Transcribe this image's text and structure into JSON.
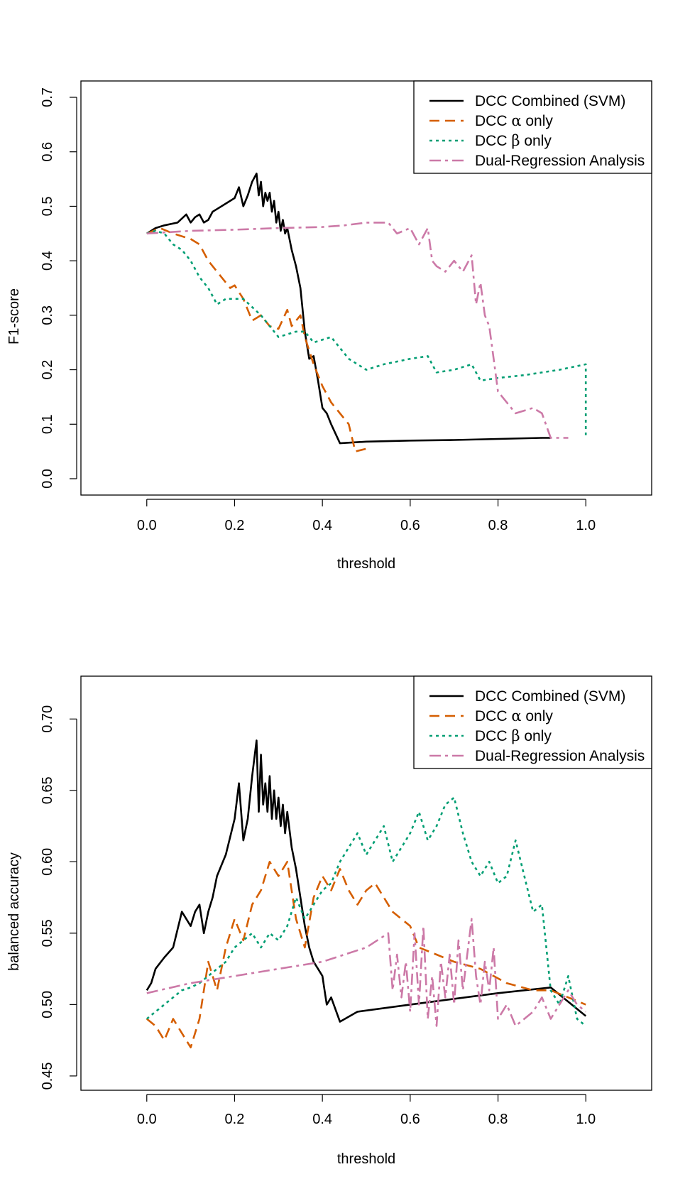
{
  "series_style": [
    {
      "color": "#000000",
      "dash": ""
    },
    {
      "color": "#D55E00",
      "dash": "14,8"
    },
    {
      "color": "#009E73",
      "dash": "4,5"
    },
    {
      "color": "#CC79A7",
      "dash": "16,6,4,6"
    }
  ],
  "chart_data": [
    {
      "type": "line",
      "title": "",
      "xlabel": "threshold",
      "ylabel": "F1-score",
      "xlim": [
        -0.15,
        1.15
      ],
      "ylim": [
        -0.03,
        0.73
      ],
      "xticks": [
        "0.0",
        "0.2",
        "0.4",
        "0.6",
        "0.8",
        "1.0"
      ],
      "yticks": [
        "0.0",
        "0.1",
        "0.2",
        "0.3",
        "0.4",
        "0.5",
        "0.6",
        "0.7"
      ],
      "legend_position": "top-right",
      "series": [
        {
          "name": "DCC Combined (SVM)",
          "legend_prefix": "DCC Combined (SVM)",
          "legend_symbol": "",
          "legend_suffix": "",
          "x": [
            0,
            0.02,
            0.04,
            0.07,
            0.09,
            0.1,
            0.11,
            0.12,
            0.13,
            0.14,
            0.15,
            0.16,
            0.18,
            0.2,
            0.21,
            0.22,
            0.23,
            0.24,
            0.25,
            0.255,
            0.26,
            0.265,
            0.27,
            0.275,
            0.28,
            0.285,
            0.29,
            0.295,
            0.3,
            0.305,
            0.31,
            0.315,
            0.32,
            0.33,
            0.34,
            0.35,
            0.36,
            0.37,
            0.38,
            0.39,
            0.4,
            0.405,
            0.41,
            0.42,
            0.44,
            0.5,
            0.6,
            0.7,
            0.8,
            0.9,
            0.92
          ],
          "values": [
            0.45,
            0.46,
            0.465,
            0.47,
            0.485,
            0.47,
            0.48,
            0.485,
            0.47,
            0.475,
            0.49,
            0.495,
            0.505,
            0.515,
            0.535,
            0.5,
            0.52,
            0.545,
            0.56,
            0.52,
            0.545,
            0.5,
            0.525,
            0.51,
            0.525,
            0.49,
            0.51,
            0.47,
            0.49,
            0.455,
            0.475,
            0.45,
            0.46,
            0.42,
            0.39,
            0.35,
            0.27,
            0.22,
            0.225,
            0.18,
            0.13,
            0.125,
            0.12,
            0.1,
            0.065,
            0.068,
            0.07,
            0.071,
            0.073,
            0.075,
            0.075
          ]
        },
        {
          "name": "DCC α only",
          "legend_prefix": "DCC ",
          "legend_symbol": "α",
          "legend_suffix": " only",
          "x": [
            0,
            0.03,
            0.06,
            0.1,
            0.12,
            0.14,
            0.16,
            0.18,
            0.19,
            0.2,
            0.22,
            0.24,
            0.26,
            0.28,
            0.3,
            0.32,
            0.33,
            0.35,
            0.36,
            0.38,
            0.4,
            0.42,
            0.44,
            0.46,
            0.475,
            0.5
          ],
          "values": [
            0.45,
            0.46,
            0.45,
            0.44,
            0.43,
            0.4,
            0.38,
            0.36,
            0.35,
            0.355,
            0.33,
            0.29,
            0.3,
            0.28,
            0.275,
            0.31,
            0.28,
            0.3,
            0.26,
            0.21,
            0.17,
            0.14,
            0.12,
            0.1,
            0.05,
            0.055
          ]
        },
        {
          "name": "DCC β only",
          "legend_prefix": "DCC ",
          "legend_symbol": "β",
          "legend_suffix": " only",
          "x": [
            0,
            0.02,
            0.04,
            0.05,
            0.06,
            0.08,
            0.1,
            0.12,
            0.14,
            0.16,
            0.18,
            0.22,
            0.26,
            0.3,
            0.34,
            0.36,
            0.38,
            0.42,
            0.44,
            0.46,
            0.5,
            0.54,
            0.6,
            0.64,
            0.66,
            0.7,
            0.74,
            0.76,
            0.8,
            0.86,
            0.9,
            0.94,
            1.0,
            1.0
          ],
          "values": [
            0.45,
            0.455,
            0.45,
            0.44,
            0.43,
            0.42,
            0.4,
            0.37,
            0.35,
            0.32,
            0.33,
            0.33,
            0.3,
            0.26,
            0.27,
            0.27,
            0.25,
            0.26,
            0.24,
            0.22,
            0.2,
            0.21,
            0.22,
            0.225,
            0.195,
            0.2,
            0.21,
            0.18,
            0.185,
            0.19,
            0.195,
            0.2,
            0.21,
            0.08
          ]
        },
        {
          "name": "Dual-Regression Analysis",
          "legend_prefix": "Dual-Regression Analysis",
          "legend_symbol": "",
          "legend_suffix": "",
          "x": [
            0,
            0.1,
            0.2,
            0.3,
            0.4,
            0.45,
            0.5,
            0.55,
            0.57,
            0.6,
            0.62,
            0.64,
            0.65,
            0.66,
            0.68,
            0.7,
            0.72,
            0.74,
            0.75,
            0.76,
            0.77,
            0.78,
            0.79,
            0.8,
            0.82,
            0.84,
            0.86,
            0.88,
            0.9,
            0.92,
            0.96
          ],
          "values": [
            0.45,
            0.455,
            0.457,
            0.46,
            0.462,
            0.465,
            0.47,
            0.47,
            0.45,
            0.46,
            0.43,
            0.46,
            0.4,
            0.39,
            0.38,
            0.4,
            0.38,
            0.41,
            0.32,
            0.36,
            0.3,
            0.28,
            0.22,
            0.16,
            0.14,
            0.12,
            0.125,
            0.13,
            0.12,
            0.075,
            0.075
          ]
        }
      ]
    },
    {
      "type": "line",
      "title": "",
      "xlabel": "threshold",
      "ylabel": "balanced accuracy",
      "xlim": [
        -0.15,
        1.15
      ],
      "ylim": [
        0.44,
        0.73
      ],
      "xticks": [
        "0.0",
        "0.2",
        "0.4",
        "0.6",
        "0.8",
        "1.0"
      ],
      "yticks": [
        "0.45",
        "0.50",
        "0.55",
        "0.60",
        "0.65",
        "0.70"
      ],
      "legend_position": "top-right",
      "series": [
        {
          "name": "DCC Combined (SVM)",
          "legend_prefix": "DCC Combined (SVM)",
          "legend_symbol": "",
          "legend_suffix": "",
          "x": [
            0,
            0.01,
            0.02,
            0.04,
            0.06,
            0.08,
            0.1,
            0.11,
            0.12,
            0.13,
            0.14,
            0.15,
            0.16,
            0.18,
            0.2,
            0.21,
            0.22,
            0.23,
            0.24,
            0.25,
            0.255,
            0.26,
            0.265,
            0.27,
            0.275,
            0.28,
            0.285,
            0.29,
            0.295,
            0.3,
            0.305,
            0.31,
            0.315,
            0.32,
            0.33,
            0.34,
            0.35,
            0.36,
            0.37,
            0.38,
            0.39,
            0.4,
            0.405,
            0.41,
            0.42,
            0.44,
            0.48,
            0.6,
            0.8,
            0.92,
            1.0
          ],
          "values": [
            0.51,
            0.515,
            0.525,
            0.533,
            0.54,
            0.565,
            0.555,
            0.565,
            0.57,
            0.55,
            0.565,
            0.575,
            0.59,
            0.605,
            0.63,
            0.655,
            0.615,
            0.63,
            0.66,
            0.685,
            0.635,
            0.675,
            0.64,
            0.655,
            0.635,
            0.66,
            0.63,
            0.65,
            0.63,
            0.645,
            0.625,
            0.64,
            0.62,
            0.635,
            0.61,
            0.595,
            0.575,
            0.555,
            0.54,
            0.53,
            0.525,
            0.52,
            0.51,
            0.5,
            0.505,
            0.488,
            0.495,
            0.5,
            0.508,
            0.512,
            0.492
          ]
        },
        {
          "name": "DCC α only",
          "legend_prefix": "DCC ",
          "legend_symbol": "α",
          "legend_suffix": " only",
          "x": [
            0,
            0.02,
            0.04,
            0.06,
            0.08,
            0.1,
            0.12,
            0.14,
            0.16,
            0.18,
            0.2,
            0.22,
            0.24,
            0.26,
            0.28,
            0.3,
            0.32,
            0.34,
            0.36,
            0.38,
            0.4,
            0.42,
            0.44,
            0.46,
            0.48,
            0.5,
            0.52,
            0.54,
            0.56,
            0.58,
            0.6,
            0.62,
            0.66,
            0.7,
            0.76,
            0.82,
            0.88,
            0.92,
            0.96,
            1.0
          ],
          "values": [
            0.49,
            0.485,
            0.475,
            0.49,
            0.48,
            0.47,
            0.49,
            0.53,
            0.51,
            0.54,
            0.56,
            0.545,
            0.57,
            0.58,
            0.6,
            0.59,
            0.6,
            0.56,
            0.54,
            0.575,
            0.59,
            0.58,
            0.595,
            0.58,
            0.57,
            0.58,
            0.585,
            0.575,
            0.565,
            0.56,
            0.555,
            0.54,
            0.535,
            0.53,
            0.525,
            0.515,
            0.51,
            0.51,
            0.505,
            0.5
          ]
        },
        {
          "name": "DCC β only",
          "legend_prefix": "DCC ",
          "legend_symbol": "β",
          "legend_suffix": " only",
          "x": [
            0,
            0.02,
            0.04,
            0.06,
            0.08,
            0.1,
            0.12,
            0.14,
            0.16,
            0.18,
            0.2,
            0.22,
            0.24,
            0.26,
            0.28,
            0.3,
            0.32,
            0.34,
            0.36,
            0.38,
            0.4,
            0.42,
            0.44,
            0.46,
            0.48,
            0.5,
            0.52,
            0.54,
            0.56,
            0.58,
            0.6,
            0.62,
            0.64,
            0.66,
            0.68,
            0.7,
            0.72,
            0.74,
            0.76,
            0.78,
            0.8,
            0.82,
            0.84,
            0.86,
            0.88,
            0.9,
            0.92,
            0.94,
            0.96,
            0.98,
            1.0
          ],
          "values": [
            0.49,
            0.495,
            0.5,
            0.505,
            0.51,
            0.512,
            0.515,
            0.52,
            0.525,
            0.53,
            0.54,
            0.545,
            0.55,
            0.54,
            0.55,
            0.545,
            0.555,
            0.575,
            0.56,
            0.57,
            0.58,
            0.585,
            0.6,
            0.61,
            0.62,
            0.605,
            0.615,
            0.625,
            0.6,
            0.61,
            0.62,
            0.635,
            0.615,
            0.625,
            0.64,
            0.645,
            0.62,
            0.6,
            0.59,
            0.6,
            0.585,
            0.59,
            0.615,
            0.59,
            0.565,
            0.57,
            0.51,
            0.5,
            0.52,
            0.49,
            0.485
          ]
        },
        {
          "name": "Dual-Regression Analysis",
          "legend_prefix": "Dual-Regression Analysis",
          "legend_symbol": "",
          "legend_suffix": "",
          "x": [
            0,
            0.1,
            0.2,
            0.3,
            0.4,
            0.45,
            0.5,
            0.55,
            0.56,
            0.57,
            0.58,
            0.59,
            0.6,
            0.61,
            0.62,
            0.63,
            0.64,
            0.65,
            0.66,
            0.67,
            0.68,
            0.69,
            0.7,
            0.71,
            0.72,
            0.73,
            0.74,
            0.75,
            0.76,
            0.77,
            0.78,
            0.79,
            0.8,
            0.82,
            0.84,
            0.86,
            0.88,
            0.9,
            0.92,
            0.94,
            0.96,
            0.98,
            1.0
          ],
          "values": [
            0.508,
            0.515,
            0.52,
            0.525,
            0.53,
            0.535,
            0.54,
            0.55,
            0.51,
            0.535,
            0.505,
            0.53,
            0.495,
            0.55,
            0.5,
            0.555,
            0.49,
            0.52,
            0.485,
            0.53,
            0.505,
            0.535,
            0.5,
            0.545,
            0.51,
            0.535,
            0.56,
            0.52,
            0.5,
            0.53,
            0.51,
            0.54,
            0.49,
            0.5,
            0.485,
            0.49,
            0.495,
            0.505,
            0.49,
            0.5,
            0.51,
            0.5,
            0.495
          ]
        }
      ]
    }
  ]
}
